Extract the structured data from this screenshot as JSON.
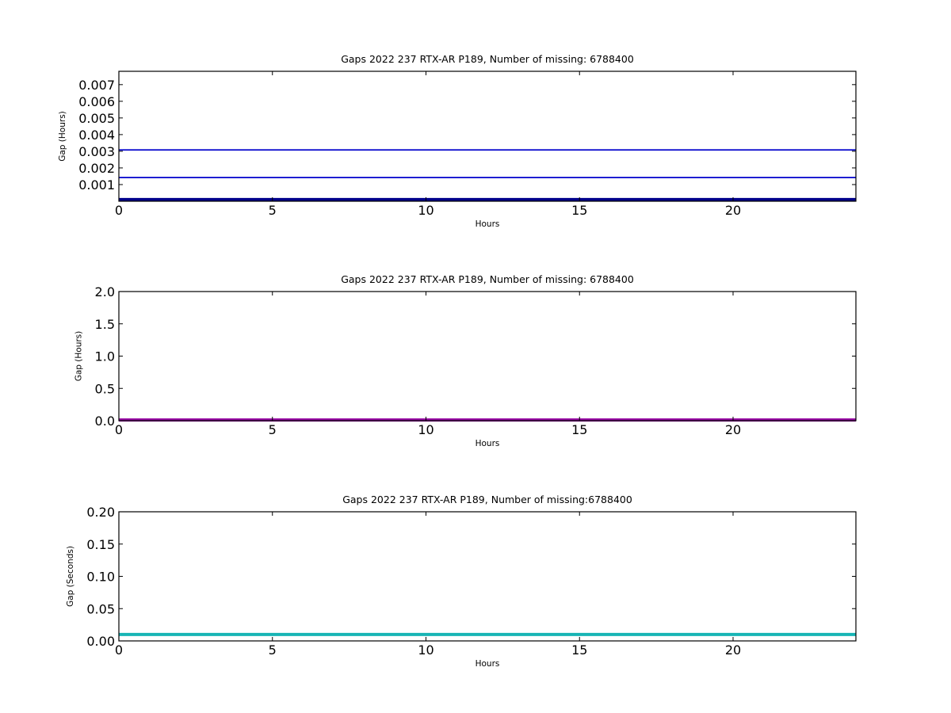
{
  "chart_data": [
    {
      "type": "line",
      "title": "Gaps 2022 237 RTX-AR  P189, Number of missing: 6788400",
      "xlabel": "Hours",
      "ylabel": "Gap (Hours)",
      "xlim": [
        0,
        24
      ],
      "ylim": [
        0,
        0.0078
      ],
      "xticks": [
        0,
        5,
        10,
        15,
        20
      ],
      "xtick_labels": [
        "0",
        "5",
        "10",
        "15",
        "20"
      ],
      "yticks": [
        0.001,
        0.002,
        0.003,
        0.004,
        0.005,
        0.006,
        0.007
      ],
      "ytick_labels": [
        "0.001",
        "0.002",
        "0.003",
        "0.004",
        "0.005",
        "0.006",
        "0.007"
      ],
      "grid": false,
      "series": [
        {
          "color": "#0000cc",
          "width": 1.8,
          "x": [
            0,
            24
          ],
          "y": [
            0.00308,
            0.00308
          ]
        },
        {
          "color": "#0000cc",
          "width": 1.8,
          "x": [
            0,
            24
          ],
          "y": [
            0.00142,
            0.00142
          ]
        },
        {
          "color": "#00008b",
          "width": 4,
          "x": [
            0,
            24
          ],
          "y": [
            0.0001,
            0.0001
          ]
        }
      ]
    },
    {
      "type": "line",
      "title": "Gaps 2022 237 RTX-AR  P189, Number of missing: 6788400",
      "xlabel": "Hours",
      "ylabel": "Gap (Hours)",
      "xlim": [
        0,
        24
      ],
      "ylim": [
        0,
        2.0
      ],
      "xticks": [
        0,
        5,
        10,
        15,
        20
      ],
      "xtick_labels": [
        "0",
        "5",
        "10",
        "15",
        "20"
      ],
      "yticks": [
        0.0,
        0.5,
        1.0,
        1.5,
        2.0
      ],
      "ytick_labels": [
        "0.0",
        "0.5",
        "1.0",
        "1.5",
        "2.0"
      ],
      "grid": false,
      "series": [
        {
          "color": "#9400a0",
          "width": 4,
          "x": [
            0,
            24
          ],
          "y": [
            0.01,
            0.01
          ]
        }
      ]
    },
    {
      "type": "line",
      "title": "Gaps 2022 237 RTX-AR  P189, Number of missing:6788400",
      "xlabel": "Hours",
      "ylabel": "Gap (Seconds)",
      "xlim": [
        0,
        24
      ],
      "ylim": [
        0,
        0.2
      ],
      "xticks": [
        0,
        5,
        10,
        15,
        20
      ],
      "xtick_labels": [
        "0",
        "5",
        "10",
        "15",
        "20"
      ],
      "yticks": [
        0.0,
        0.05,
        0.1,
        0.15,
        0.2
      ],
      "ytick_labels": [
        "0.00",
        "0.05",
        "0.10",
        "0.15",
        "0.20"
      ],
      "grid": false,
      "series": [
        {
          "color": "#17b5b5",
          "width": 4,
          "x": [
            0,
            24
          ],
          "y": [
            0.01,
            0.01
          ]
        }
      ]
    }
  ]
}
